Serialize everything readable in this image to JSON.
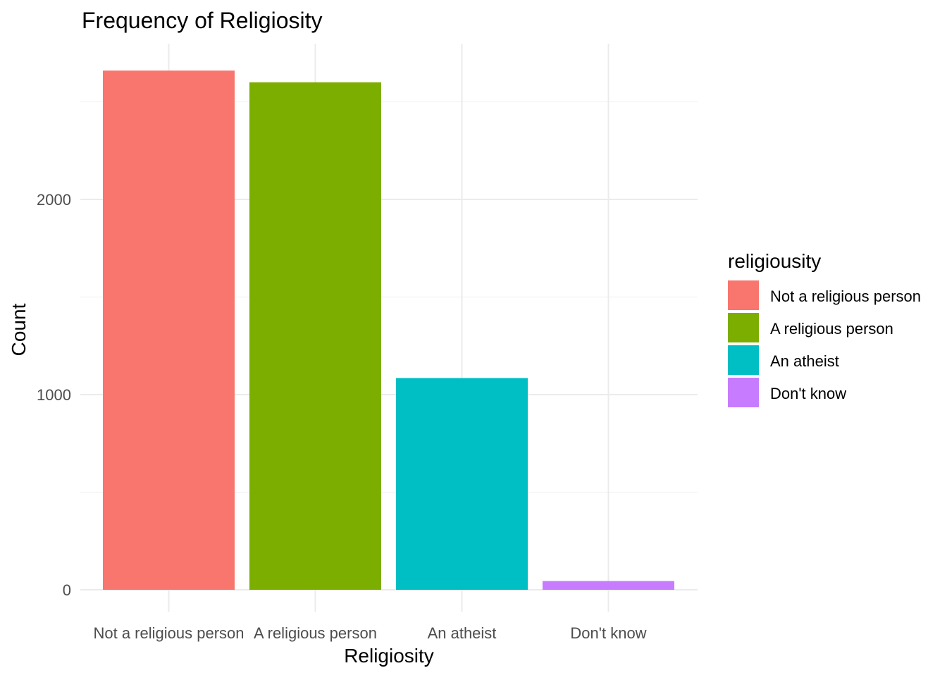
{
  "chart_data": {
    "type": "bar",
    "title": "Frequency of Religiosity",
    "xlabel": "Religiosity",
    "ylabel": "Count",
    "categories": [
      "Not a religious person",
      "A religious person",
      "An atheist",
      "Don't know"
    ],
    "values": [
      2660,
      2600,
      1085,
      45
    ],
    "colors": [
      "#F8766D",
      "#7CAE00",
      "#00BFC4",
      "#C77CFF"
    ],
    "ylim": [
      0,
      2800
    ],
    "yticks": [
      0,
      1000,
      2000
    ],
    "ytick_labels": [
      "0",
      "1000",
      "2000"
    ],
    "grid": true,
    "legend": {
      "title": "religiousity",
      "position": "right",
      "entries": [
        "Not a religious person",
        "A religious person",
        "An atheist",
        "Don't know"
      ]
    }
  }
}
